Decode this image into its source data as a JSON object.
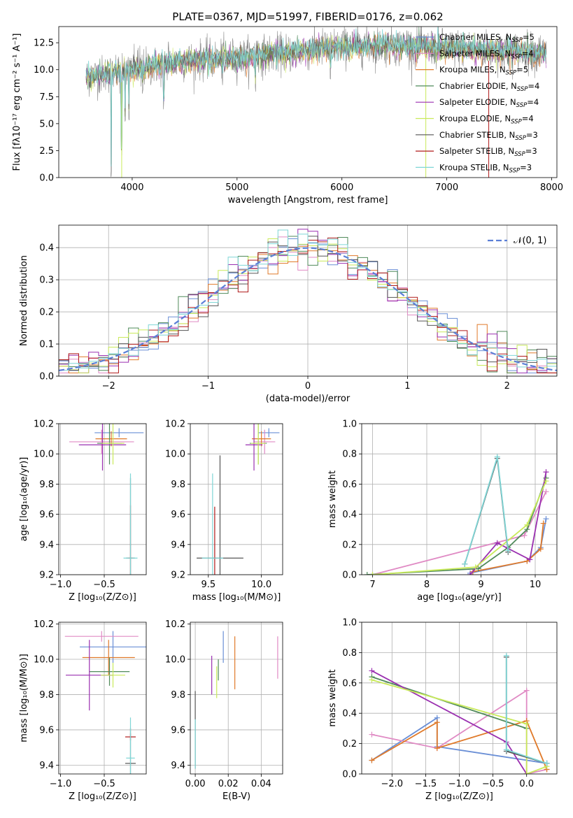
{
  "colors": {
    "chabrier_miles": "#6a8fd6",
    "salpeter_miles": "#e08ac4",
    "kroupa_miles": "#e07a2a",
    "chabrier_elodie": "#4f8a5a",
    "salpeter_elodie": "#9a2fb0",
    "kroupa_elodie": "#c9ea5a",
    "chabrier_stelib": "#555555",
    "salpeter_stelib": "#b01a1a",
    "kroupa_stelib": "#7fd6d6",
    "normal": "#5b7fd6",
    "grid": "#b0b0b0"
  },
  "chart_data": [
    {
      "id": "spectrum",
      "type": "line",
      "title": "PLATE=0367, MJD=51997, FIBERID=0176, z=0.062",
      "xlabel": "wavelength [Angstrom, rest frame]",
      "ylabel": "Flux [fλ10⁻¹⁷ erg cm⁻² s⁻¹ A⁻¹]",
      "xlim": [
        3300,
        8050
      ],
      "ylim": [
        0,
        14
      ],
      "xticks": [
        4000,
        5000,
        6000,
        7000,
        8000
      ],
      "yticks": [
        0.0,
        2.5,
        5.0,
        7.5,
        10.0,
        12.5
      ],
      "grid": false,
      "legend_position": "right",
      "spectrum_range": [
        3560,
        7950
      ],
      "continuum": [
        [
          3560,
          9.3
        ],
        [
          4000,
          10.0
        ],
        [
          4500,
          10.8
        ],
        [
          5000,
          11.1
        ],
        [
          5500,
          11.6
        ],
        [
          6000,
          12.2
        ],
        [
          6500,
          12.2
        ],
        [
          7000,
          12.0
        ],
        [
          7500,
          11.8
        ],
        [
          7950,
          11.5
        ]
      ],
      "legend": [
        {
          "label": "Chabrier MILES, N",
          "sub": "SSP",
          "eq": "=5",
          "color_key": "chabrier_miles"
        },
        {
          "label": "Salpeter MILES, N",
          "sub": "SSP",
          "eq": "=4",
          "color_key": "salpeter_miles"
        },
        {
          "label": "Kroupa MILES, N",
          "sub": "SSP",
          "eq": "=5",
          "color_key": "kroupa_miles"
        },
        {
          "label": "Chabrier ELODIE, N",
          "sub": "SSP",
          "eq": "=4",
          "color_key": "chabrier_elodie"
        },
        {
          "label": "Salpeter ELODIE, N",
          "sub": "SSP",
          "eq": "=4",
          "color_key": "salpeter_elodie"
        },
        {
          "label": "Kroupa ELODIE, N",
          "sub": "SSP",
          "eq": "=4",
          "color_key": "kroupa_elodie"
        },
        {
          "label": "Chabrier STELIB, N",
          "sub": "SSP",
          "eq": "=3",
          "color_key": "chabrier_stelib"
        },
        {
          "label": "Salpeter STELIB, N",
          "sub": "SSP",
          "eq": "=3",
          "color_key": "salpeter_stelib"
        },
        {
          "label": "Kroupa STELIB, N",
          "sub": "SSP",
          "eq": "=3",
          "color_key": "kroupa_stelib"
        }
      ]
    },
    {
      "id": "residuals",
      "type": "line",
      "xlabel": "(data-model)/error",
      "ylabel": "Normed distribution",
      "xlim": [
        -2.5,
        2.5
      ],
      "ylim": [
        0,
        0.47
      ],
      "xticks": [
        -2,
        -1,
        0,
        1,
        2
      ],
      "yticks": [
        0.0,
        0.1,
        0.2,
        0.3,
        0.4
      ],
      "grid": true,
      "legend_position": "top-right",
      "legend_label": "𝒩(0, 1)",
      "bin_width": 0.1,
      "bin_start": -2.5,
      "normal_curve": {
        "mean": 0,
        "sigma": 1
      }
    },
    {
      "id": "age_Z",
      "type": "scatter",
      "xlabel": "Z [log₁₀(Z/Z⊙)]",
      "ylabel": "age  [log₁₀(age/yr)]",
      "xlim": [
        -1.02,
        -0.02
      ],
      "ylim": [
        9.2,
        10.2
      ],
      "xticks": [
        -1.0,
        -0.5
      ],
      "yticks": [
        9.2,
        9.4,
        9.6,
        9.8,
        10.0,
        10.2
      ],
      "grid": true,
      "errorbars": [
        {
          "x": -0.33,
          "y": 10.14,
          "xerr": 0.28,
          "yerr": 0.03,
          "color_key": "chabrier_miles"
        },
        {
          "x": -0.53,
          "y": 10.08,
          "xerr": 0.37,
          "yerr": 0.08,
          "color_key": "salpeter_miles"
        },
        {
          "x": -0.42,
          "y": 10.1,
          "xerr": 0.18,
          "yerr": 0.05,
          "color_key": "kroupa_miles"
        },
        {
          "x": -0.44,
          "y": 10.07,
          "xerr": 0.14,
          "yerr": 0.14,
          "color_key": "chabrier_elodie"
        },
        {
          "x": -0.52,
          "y": 10.06,
          "xerr": 0.27,
          "yerr": 0.17,
          "color_key": "salpeter_elodie"
        },
        {
          "x": -0.4,
          "y": 10.07,
          "xerr": 0.13,
          "yerr": 0.14,
          "color_key": "kroupa_elodie"
        },
        {
          "x": -0.2,
          "y": 9.31,
          "xerr": 0.05,
          "yerr": 0.53,
          "color_key": "chabrier_stelib"
        },
        {
          "x": -0.2,
          "y": 9.31,
          "xerr": 0.03,
          "yerr": 0.35,
          "color_key": "salpeter_stelib"
        },
        {
          "x": -0.2,
          "y": 9.31,
          "xerr": 0.08,
          "yerr": 0.56,
          "color_key": "kroupa_stelib"
        }
      ]
    },
    {
      "id": "age_mass",
      "type": "scatter",
      "xlabel": "mass [log₁₀(M/M⊙)]",
      "ylabel": "",
      "xlim": [
        9.33,
        10.2
      ],
      "ylim": [
        9.2,
        10.2
      ],
      "xticks": [
        9.5,
        10.0
      ],
      "yticks": [
        9.2,
        9.4,
        9.6,
        9.8,
        10.0,
        10.2
      ],
      "grid": true,
      "errorbars": [
        {
          "x": 10.07,
          "y": 10.14,
          "xerr": 0.1,
          "yerr": 0.03,
          "color_key": "chabrier_miles"
        },
        {
          "x": 10.03,
          "y": 10.08,
          "xerr": 0.1,
          "yerr": 0.08,
          "color_key": "salpeter_miles"
        },
        {
          "x": 10.0,
          "y": 10.1,
          "xerr": 0.09,
          "yerr": 0.05,
          "color_key": "kroupa_miles"
        },
        {
          "x": 9.97,
          "y": 10.07,
          "xerr": 0.08,
          "yerr": 0.14,
          "color_key": "chabrier_elodie"
        },
        {
          "x": 9.93,
          "y": 10.06,
          "xerr": 0.08,
          "yerr": 0.17,
          "color_key": "salpeter_elodie"
        },
        {
          "x": 9.97,
          "y": 10.07,
          "xerr": 0.07,
          "yerr": 0.14,
          "color_key": "kroupa_elodie"
        },
        {
          "x": 9.61,
          "y": 9.31,
          "xerr": 0.22,
          "yerr": 0.68,
          "color_key": "chabrier_stelib"
        },
        {
          "x": 9.56,
          "y": 9.31,
          "xerr": 0.02,
          "yerr": 0.34,
          "color_key": "salpeter_stelib"
        },
        {
          "x": 9.54,
          "y": 9.31,
          "xerr": 0.1,
          "yerr": 0.56,
          "color_key": "kroupa_stelib"
        }
      ]
    },
    {
      "id": "weight_age",
      "type": "line",
      "xlabel": "age  [log₁₀(age/yr)]",
      "ylabel": "mass weight",
      "xlim": [
        6.8,
        10.4
      ],
      "ylim": [
        0,
        1.0
      ],
      "xticks": [
        7,
        8,
        9,
        10
      ],
      "yticks": [
        0.0,
        0.2,
        0.4,
        0.6,
        0.8,
        1.0
      ],
      "grid": true,
      "series": [
        {
          "color_key": "chabrier_miles",
          "points": [
            [
              8.8,
              0.01
            ],
            [
              9.85,
              0.09
            ],
            [
              10.1,
              0.18
            ],
            [
              10.2,
              0.37
            ]
          ]
        },
        {
          "color_key": "salpeter_miles",
          "points": [
            [
              7.0,
              0.0
            ],
            [
              9.8,
              0.26
            ],
            [
              10.2,
              0.55
            ]
          ]
        },
        {
          "color_key": "kroupa_miles",
          "points": [
            [
              8.85,
              0.02
            ],
            [
              9.85,
              0.09
            ],
            [
              10.1,
              0.17
            ],
            [
              10.15,
              0.34
            ]
          ]
        },
        {
          "color_key": "chabrier_elodie",
          "points": [
            [
              6.9,
              0.0
            ],
            [
              8.95,
              0.04
            ],
            [
              9.5,
              0.18
            ],
            [
              9.85,
              0.3
            ],
            [
              10.2,
              0.64
            ]
          ]
        },
        {
          "color_key": "salpeter_elodie",
          "points": [
            [
              8.8,
              0.0
            ],
            [
              9.3,
              0.21
            ],
            [
              9.9,
              0.1
            ],
            [
              10.2,
              0.68
            ]
          ]
        },
        {
          "color_key": "kroupa_elodie",
          "points": [
            [
              7.0,
              0.0
            ],
            [
              8.9,
              0.05
            ],
            [
              9.85,
              0.33
            ],
            [
              10.2,
              0.62
            ]
          ]
        },
        {
          "color_key": "chabrier_stelib",
          "points": [
            [
              8.7,
              0.07
            ],
            [
              9.3,
              0.77
            ],
            [
              9.5,
              0.15
            ]
          ]
        },
        {
          "color_key": "kroupa_stelib",
          "points": [
            [
              8.7,
              0.07
            ],
            [
              9.3,
              0.78
            ],
            [
              9.5,
              0.16
            ]
          ]
        }
      ]
    },
    {
      "id": "mass_Z",
      "type": "scatter",
      "xlabel": "Z [log₁₀(Z/Z⊙)]",
      "ylabel": "mass [log₁₀(M/M⊙)]",
      "xlim": [
        -1.02,
        -0.02
      ],
      "ylim": [
        9.35,
        10.21
      ],
      "xticks": [
        -1.0,
        -0.5
      ],
      "yticks": [
        9.4,
        9.6,
        9.8,
        10.0,
        10.2
      ],
      "grid": true,
      "errorbars": [
        {
          "x": -0.4,
          "y": 10.07,
          "xerr": 0.38,
          "yerr": 0.09,
          "color_key": "chabrier_miles"
        },
        {
          "x": -0.53,
          "y": 10.13,
          "xerr": 0.42,
          "yerr": 0.03,
          "color_key": "salpeter_miles"
        },
        {
          "x": -0.45,
          "y": 10.01,
          "xerr": 0.3,
          "yerr": 0.1,
          "color_key": "kroupa_miles"
        },
        {
          "x": -0.44,
          "y": 9.93,
          "xerr": 0.23,
          "yerr": 0.08,
          "color_key": "chabrier_elodie"
        },
        {
          "x": -0.67,
          "y": 9.91,
          "xerr": 0.27,
          "yerr": 0.2,
          "color_key": "salpeter_elodie"
        },
        {
          "x": -0.4,
          "y": 9.91,
          "xerr": 0.14,
          "yerr": 0.07,
          "color_key": "kroupa_elodie"
        },
        {
          "x": -0.2,
          "y": 9.41,
          "xerr": 0.06,
          "yerr": 0.2,
          "color_key": "chabrier_stelib"
        },
        {
          "x": -0.2,
          "y": 9.56,
          "xerr": 0.06,
          "yerr": 0.02,
          "color_key": "salpeter_stelib"
        },
        {
          "x": -0.2,
          "y": 9.44,
          "xerr": 0.05,
          "yerr": 0.23,
          "color_key": "kroupa_stelib"
        }
      ]
    },
    {
      "id": "mass_ebv",
      "type": "scatter",
      "xlabel": "E(B-V)",
      "ylabel": "",
      "xlim": [
        -0.003,
        0.053
      ],
      "ylim": [
        9.35,
        10.21
      ],
      "xticks": [
        0.0,
        0.02,
        0.04
      ],
      "yticks": [
        9.4,
        9.6,
        9.8,
        10.0,
        10.2
      ],
      "grid": true,
      "errorbars": [
        {
          "x": 0.017,
          "y": 10.07,
          "xerr": 0.0,
          "yerr": 0.09,
          "color_key": "chabrier_miles"
        },
        {
          "x": 0.05,
          "y": 10.01,
          "xerr": 0.0,
          "yerr": 0.12,
          "color_key": "salpeter_miles"
        },
        {
          "x": 0.024,
          "y": 9.98,
          "xerr": 0.0,
          "yerr": 0.15,
          "color_key": "kroupa_miles"
        },
        {
          "x": 0.014,
          "y": 9.94,
          "xerr": 0.0,
          "yerr": 0.06,
          "color_key": "chabrier_elodie"
        },
        {
          "x": 0.01,
          "y": 9.91,
          "xerr": 0.0,
          "yerr": 0.11,
          "color_key": "salpeter_elodie"
        },
        {
          "x": 0.013,
          "y": 9.87,
          "xerr": 0.0,
          "yerr": 0.09,
          "color_key": "kroupa_elodie"
        },
        {
          "x": 0.0,
          "y": 9.6,
          "xerr": 0.0,
          "yerr": 0.22,
          "color_key": "chabrier_stelib"
        },
        {
          "x": 0.0,
          "y": 9.52,
          "xerr": 0.0,
          "yerr": 0.14,
          "color_key": "kroupa_stelib"
        }
      ]
    },
    {
      "id": "weight_Z",
      "type": "line",
      "xlabel": "Z [log₁₀(Z/Z⊙)]",
      "ylabel": "mass weight",
      "xlim": [
        -2.45,
        0.45
      ],
      "ylim": [
        0,
        1.0
      ],
      "xticks": [
        -2.0,
        -1.5,
        -1.0,
        -0.5,
        0.0
      ],
      "yticks": [
        0.0,
        0.2,
        0.4,
        0.6,
        0.8,
        1.0
      ],
      "grid": true,
      "series": [
        {
          "color_key": "chabrier_miles",
          "points": [
            [
              -2.3,
              0.09
            ],
            [
              -1.33,
              0.37
            ],
            [
              -1.33,
              0.18
            ],
            [
              0.3,
              0.07
            ]
          ]
        },
        {
          "color_key": "salpeter_miles",
          "points": [
            [
              -2.3,
              0.26
            ],
            [
              -1.33,
              0.17
            ],
            [
              0.0,
              0.55
            ],
            [
              0.0,
              0.0
            ],
            [
              0.3,
              0.03
            ]
          ]
        },
        {
          "color_key": "kroupa_miles",
          "points": [
            [
              -2.3,
              0.09
            ],
            [
              -1.33,
              0.34
            ],
            [
              -1.33,
              0.17
            ],
            [
              0.0,
              0.35
            ],
            [
              0.3,
              0.03
            ]
          ]
        },
        {
          "color_key": "chabrier_elodie",
          "points": [
            [
              -2.3,
              0.64
            ],
            [
              0.0,
              0.3
            ]
          ]
        },
        {
          "color_key": "salpeter_elodie",
          "points": [
            [
              -2.3,
              0.68
            ],
            [
              -0.3,
              0.21
            ],
            [
              0.0,
              0.0
            ]
          ]
        },
        {
          "color_key": "kroupa_elodie",
          "points": [
            [
              -2.3,
              0.62
            ],
            [
              0.0,
              0.33
            ],
            [
              0.0,
              0.0
            ],
            [
              0.3,
              0.05
            ]
          ]
        },
        {
          "color_key": "chabrier_stelib",
          "points": [
            [
              -0.3,
              0.77
            ],
            [
              -0.3,
              0.15
            ],
            [
              0.3,
              0.07
            ]
          ]
        },
        {
          "color_key": "kroupa_stelib",
          "points": [
            [
              -0.3,
              0.78
            ],
            [
              -0.3,
              0.16
            ],
            [
              0.3,
              0.07
            ]
          ]
        }
      ]
    }
  ]
}
